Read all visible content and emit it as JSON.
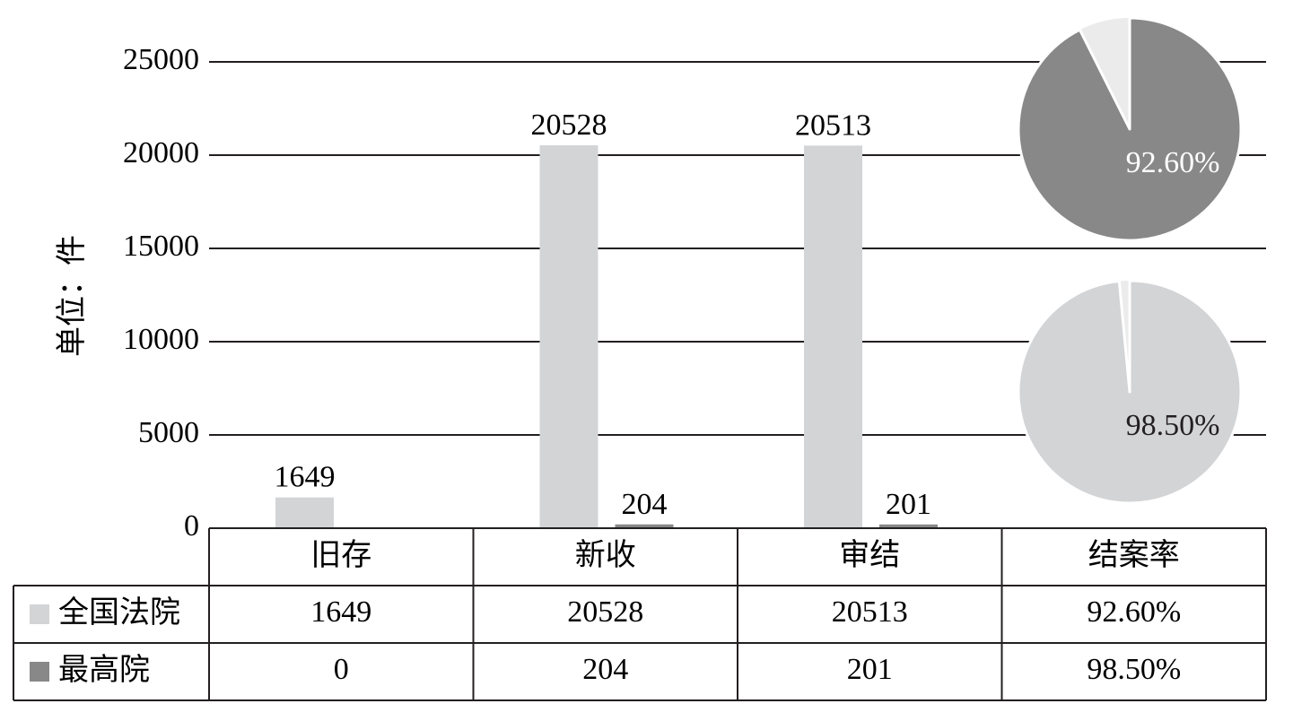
{
  "chart_data": {
    "type": "bar",
    "ylabel": "单位：件",
    "ylim": [
      0,
      25000
    ],
    "yticks": [
      0,
      5000,
      10000,
      15000,
      20000,
      25000
    ],
    "grid": true,
    "categories": [
      "旧存",
      "新收",
      "审结"
    ],
    "series": [
      {
        "name": "全国法院",
        "color": "#d3d4d6",
        "values": [
          1649,
          20528,
          20513
        ],
        "labels": [
          "1649",
          "20528",
          "20513"
        ]
      },
      {
        "name": "最高院",
        "color": "#888888",
        "values": [
          0,
          204,
          201
        ],
        "labels": [
          "",
          "204",
          "201"
        ]
      }
    ],
    "pies": [
      {
        "value": 92.6,
        "label": "92.60%",
        "color": "#888888",
        "rest_color": "#ebebeb"
      },
      {
        "value": 98.5,
        "label": "98.50%",
        "color": "#d3d4d6",
        "rest_color": "#ebebeb"
      }
    ],
    "table": {
      "header": [
        "旧存",
        "新收",
        "审结",
        "结案率"
      ],
      "rows": [
        {
          "name": "全国法院",
          "color": "#d3d4d6",
          "cells": [
            "1649",
            "20528",
            "20513",
            "92.60%"
          ]
        },
        {
          "name": "最高院",
          "color": "#888888",
          "cells": [
            "0",
            "204",
            "201",
            "98.50%"
          ]
        }
      ]
    }
  }
}
